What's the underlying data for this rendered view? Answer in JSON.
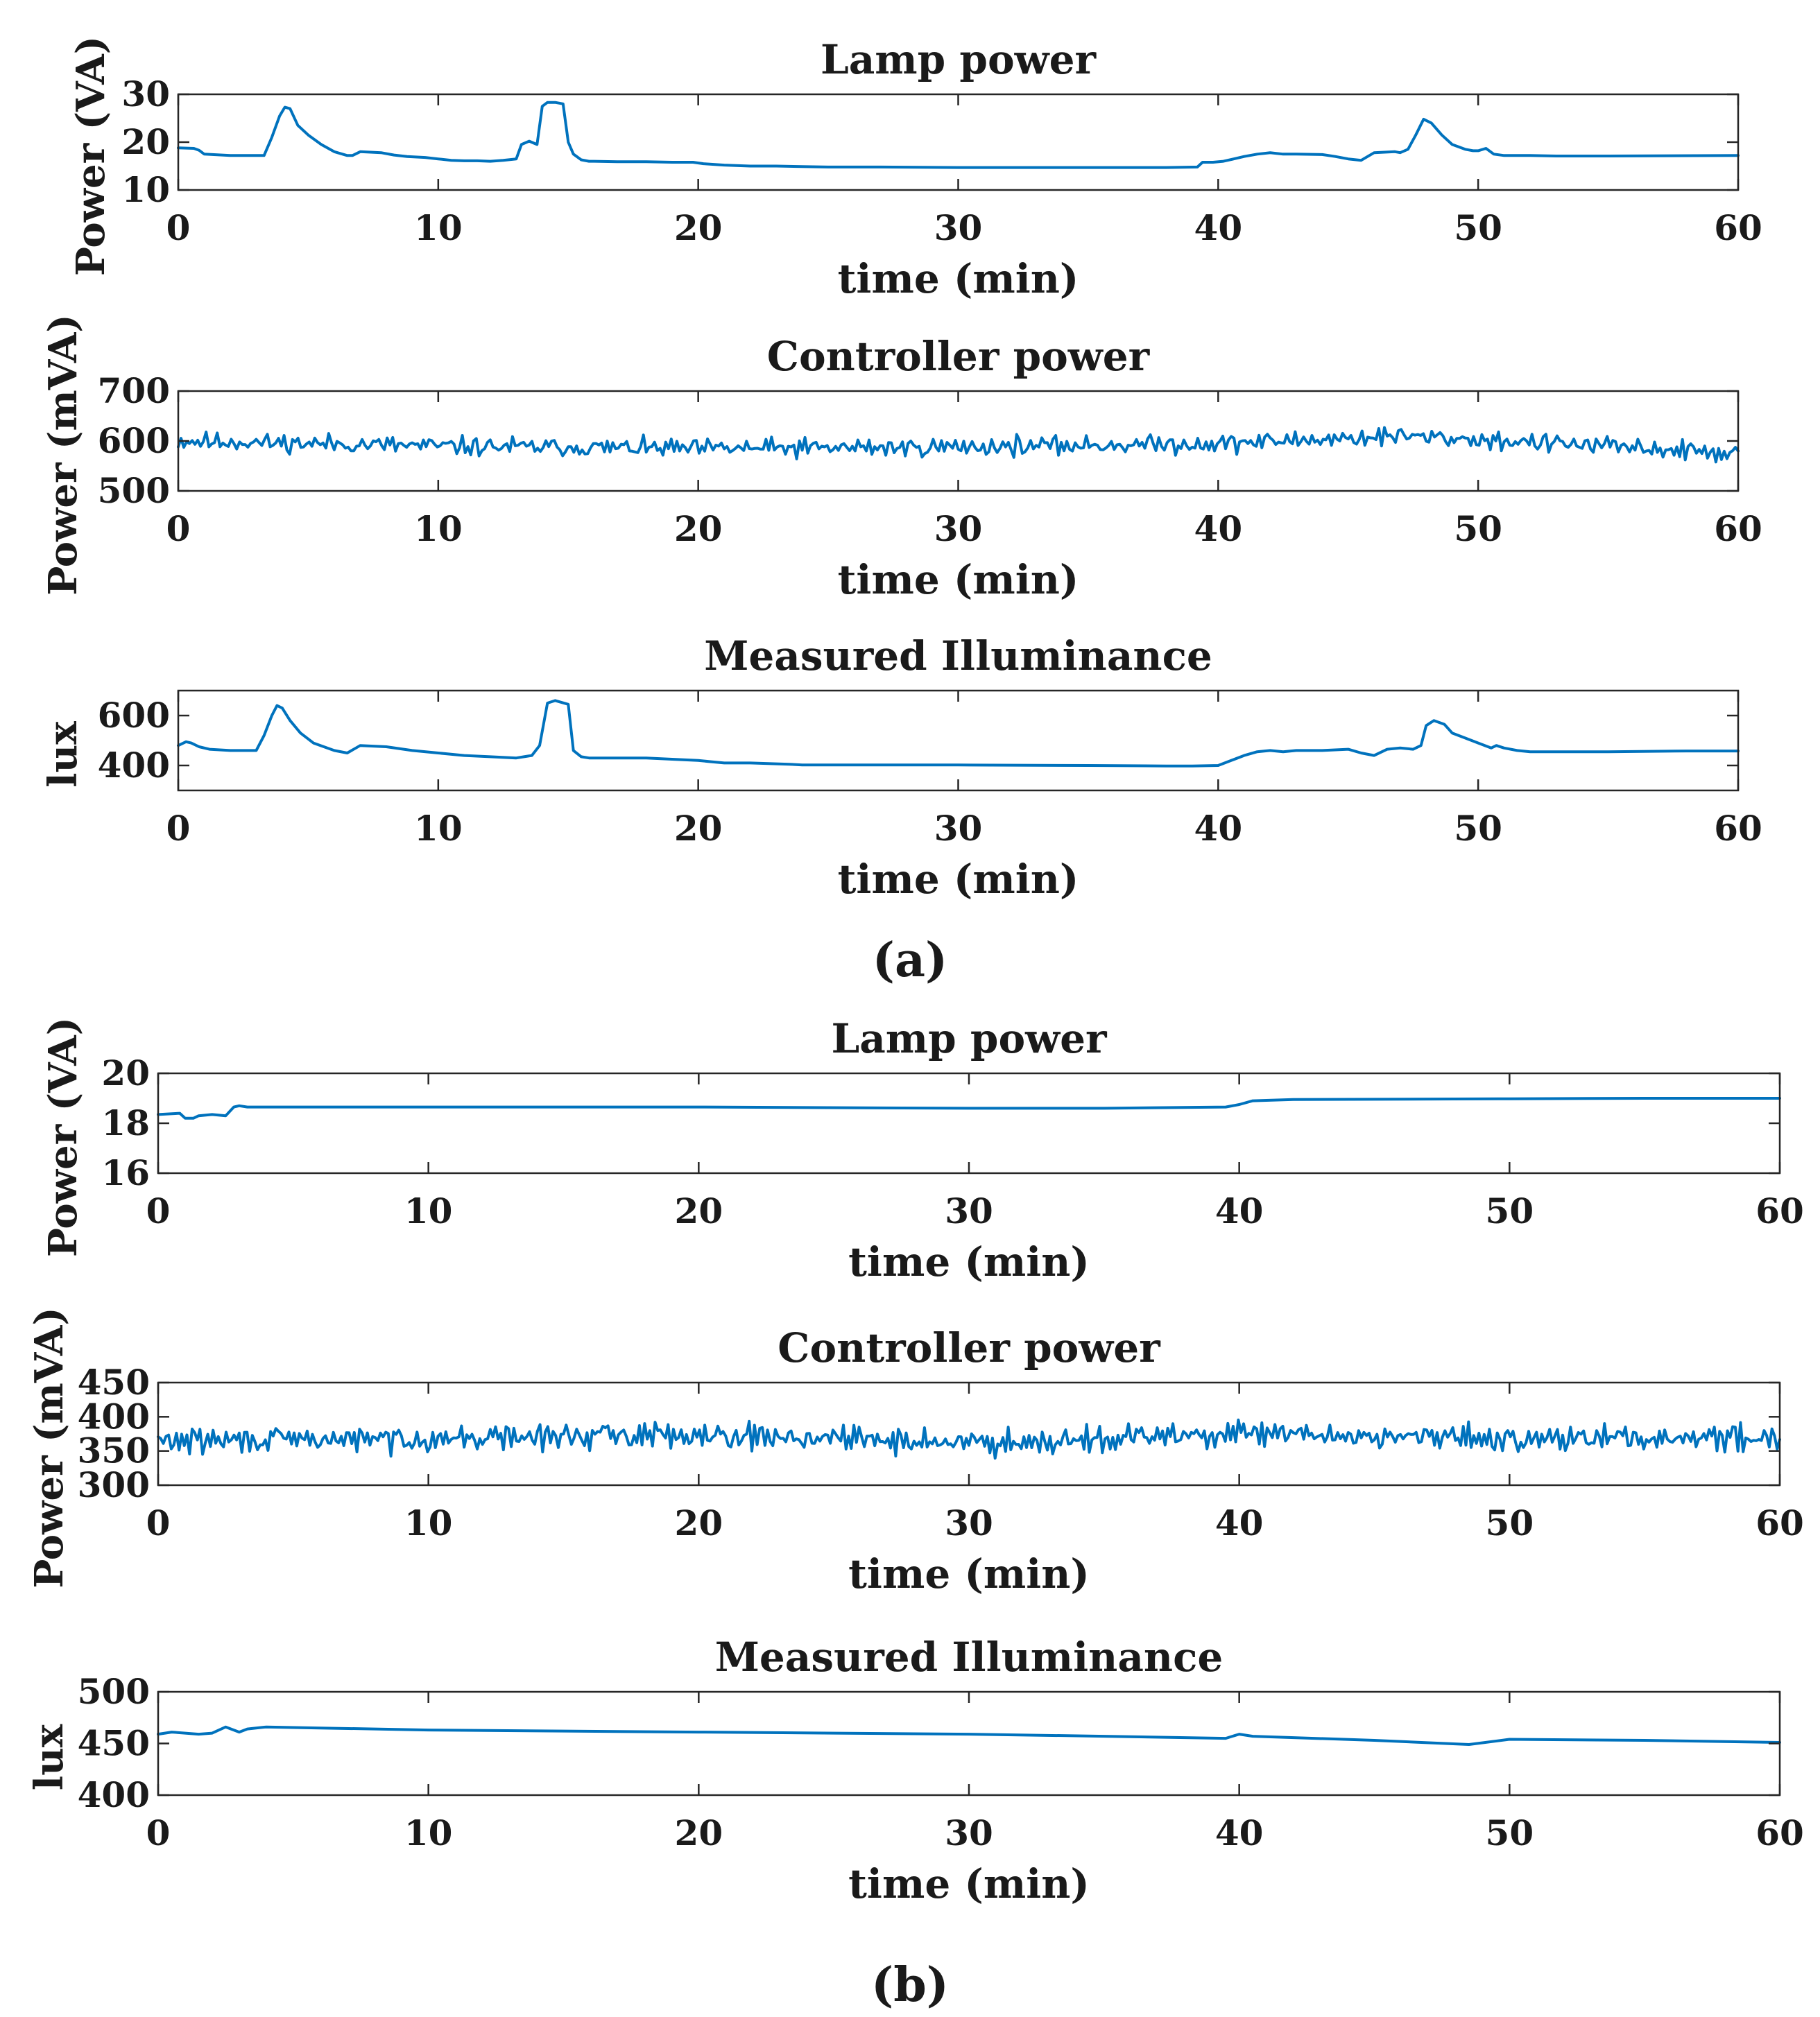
{
  "colors": {
    "series": "#0072BD",
    "axis": "#262626",
    "text": "#1a1a1a",
    "background": "#ffffff"
  },
  "panels": [
    {
      "label": "(a)"
    },
    {
      "label": "(b)"
    }
  ],
  "chart_data": [
    {
      "type": "line",
      "panel": "(a)",
      "title": "Lamp power",
      "xlabel": "time (min)",
      "ylabel": "Power (VA)",
      "xlim": [
        0,
        60
      ],
      "ylim": [
        10,
        30
      ],
      "xticks": [
        0,
        10,
        20,
        30,
        40,
        50,
        60
      ],
      "yticks": [
        10,
        20,
        30
      ],
      "grid": false,
      "series": [
        {
          "name": "Lamp power",
          "mode": "piecewise",
          "x": [
            0,
            0.6,
            0.8,
            1.0,
            2.0,
            3.3,
            3.6,
            3.9,
            4.1,
            4.3,
            4.6,
            5.0,
            5.5,
            6.0,
            6.5,
            6.7,
            7.0,
            7.8,
            8.3,
            8.8,
            9.5,
            10.0,
            10.5,
            11.0,
            11.5,
            12.0,
            12.5,
            13.0,
            13.2,
            13.5,
            13.8,
            14.0,
            14.2,
            14.5,
            14.8,
            15.0,
            15.2,
            15.5,
            15.8,
            16.0,
            17.0,
            18.0,
            19.0,
            19.8,
            20.2,
            21.0,
            22.0,
            23.0,
            24.0,
            25.0,
            27.0,
            30.0,
            33.0,
            36.0,
            38.0,
            39.2,
            39.4,
            39.8,
            40.2,
            40.6,
            41.0,
            41.5,
            42.0,
            42.5,
            43.0,
            44.0,
            44.5,
            45.0,
            45.5,
            46.0,
            46.8,
            47.0,
            47.3,
            47.6,
            47.9,
            48.2,
            48.6,
            49.0,
            49.5,
            49.8,
            50.0,
            50.3,
            50.6,
            51.0,
            52.0,
            53.0,
            55.0,
            60.0
          ],
          "y": [
            18.8,
            18.7,
            18.3,
            17.5,
            17.2,
            17.2,
            21.0,
            25.5,
            27.3,
            27.0,
            23.5,
            21.5,
            19.5,
            18.0,
            17.2,
            17.2,
            18.0,
            17.8,
            17.3,
            17.0,
            16.8,
            16.5,
            16.2,
            16.1,
            16.1,
            16.0,
            16.2,
            16.5,
            19.5,
            20.2,
            19.5,
            27.5,
            28.3,
            28.3,
            28.0,
            20.0,
            17.5,
            16.3,
            16.0,
            16.0,
            15.9,
            15.9,
            15.8,
            15.8,
            15.5,
            15.2,
            15.0,
            15.0,
            14.9,
            14.8,
            14.8,
            14.7,
            14.7,
            14.7,
            14.7,
            14.8,
            15.8,
            15.8,
            16.0,
            16.5,
            17.0,
            17.5,
            17.8,
            17.5,
            17.5,
            17.4,
            17.0,
            16.5,
            16.2,
            17.8,
            18.0,
            17.8,
            18.5,
            21.5,
            24.8,
            24.0,
            21.5,
            19.5,
            18.5,
            18.2,
            18.2,
            18.7,
            17.5,
            17.2,
            17.2,
            17.1,
            17.1,
            17.2
          ]
        }
      ]
    },
    {
      "type": "line",
      "panel": "(a)",
      "title": "Controller power",
      "xlabel": "time (min)",
      "ylabel": "Power (mVA)",
      "xlim": [
        0,
        60
      ],
      "ylim": [
        500,
        700
      ],
      "xticks": [
        0,
        10,
        20,
        30,
        40,
        50,
        60
      ],
      "yticks": [
        500,
        600,
        700
      ],
      "grid": false,
      "series": [
        {
          "name": "Controller power",
          "mode": "noise",
          "mean": 590,
          "amplitude": 32,
          "min": 530,
          "max": 650,
          "points": 560,
          "seed": 11,
          "trend": [
            [
              0,
              600
            ],
            [
              10,
              590
            ],
            [
              20,
              585
            ],
            [
              30,
              588
            ],
            [
              40,
              595
            ],
            [
              47,
              610
            ],
            [
              53,
              595
            ],
            [
              60,
              575
            ]
          ]
        }
      ]
    },
    {
      "type": "line",
      "panel": "(a)",
      "title": "Measured Illuminance",
      "xlabel": "time (min)",
      "ylabel": "lux",
      "xlim": [
        0,
        60
      ],
      "ylim": [
        300,
        700
      ],
      "xticks": [
        0,
        10,
        20,
        30,
        40,
        50,
        60
      ],
      "yticks": [
        400,
        600
      ],
      "grid": false,
      "series": [
        {
          "name": "Measured Illuminance",
          "mode": "piecewise",
          "x": [
            0,
            0.3,
            0.5,
            0.8,
            1.2,
            2.0,
            3.0,
            3.3,
            3.6,
            3.8,
            4.0,
            4.3,
            4.7,
            5.2,
            6.0,
            6.5,
            7.0,
            8.0,
            9.0,
            10.0,
            11.0,
            12.0,
            13.0,
            13.3,
            13.6,
            13.9,
            14.2,
            14.5,
            15.0,
            15.2,
            15.5,
            15.8,
            16.0,
            17.0,
            18.0,
            19.0,
            20.0,
            20.5,
            21.0,
            22.0,
            23.5,
            24.0,
            30.0,
            35.0,
            38.0,
            39.0,
            40.0,
            40.5,
            41.0,
            41.5,
            42.0,
            42.5,
            43.0,
            44.0,
            45.0,
            45.5,
            46.0,
            46.5,
            47.0,
            47.5,
            47.8,
            48.0,
            48.3,
            48.7,
            49.0,
            49.5,
            50.0,
            50.5,
            50.7,
            51.0,
            51.5,
            52.0,
            53.0,
            55.0,
            58.0,
            60.0
          ],
          "y": [
            480,
            495,
            490,
            475,
            465,
            460,
            460,
            520,
            600,
            640,
            630,
            580,
            530,
            490,
            460,
            450,
            480,
            475,
            460,
            450,
            440,
            435,
            430,
            435,
            440,
            480,
            650,
            660,
            645,
            460,
            435,
            430,
            430,
            430,
            430,
            425,
            420,
            415,
            410,
            410,
            405,
            402,
            402,
            400,
            398,
            398,
            400,
            420,
            440,
            455,
            460,
            455,
            460,
            460,
            465,
            450,
            440,
            465,
            470,
            465,
            480,
            560,
            580,
            565,
            530,
            510,
            490,
            470,
            480,
            470,
            460,
            455,
            455,
            455,
            458,
            458
          ]
        }
      ]
    },
    {
      "type": "line",
      "panel": "(b)",
      "title": "Lamp power",
      "xlabel": "time (min)",
      "ylabel": "Power (VA)",
      "xlim": [
        0,
        60
      ],
      "ylim": [
        16,
        20
      ],
      "xticks": [
        0,
        10,
        20,
        30,
        40,
        50,
        60
      ],
      "yticks": [
        16,
        18,
        20
      ],
      "grid": false,
      "series": [
        {
          "name": "Lamp power",
          "mode": "piecewise",
          "x": [
            0,
            0.8,
            1.0,
            1.3,
            1.5,
            2.0,
            2.5,
            2.8,
            3.0,
            3.3,
            4.0,
            10.0,
            20.0,
            30.0,
            35.0,
            39.5,
            40.0,
            40.5,
            42.0,
            50.0,
            55.0,
            60.0
          ],
          "y": [
            18.35,
            18.4,
            18.2,
            18.2,
            18.3,
            18.35,
            18.3,
            18.65,
            18.7,
            18.65,
            18.65,
            18.65,
            18.65,
            18.6,
            18.6,
            18.65,
            18.75,
            18.9,
            18.95,
            18.98,
            19.0,
            19.0
          ]
        }
      ]
    },
    {
      "type": "line",
      "panel": "(b)",
      "title": "Controller power",
      "xlabel": "time (min)",
      "ylabel": "Power (mVA)",
      "xlim": [
        0,
        60
      ],
      "ylim": [
        300,
        450
      ],
      "xticks": [
        0,
        10,
        20,
        30,
        40,
        50,
        60
      ],
      "yticks": [
        300,
        350,
        400,
        450
      ],
      "grid": false,
      "series": [
        {
          "name": "Controller power",
          "mode": "noise",
          "mean": 370,
          "amplitude": 30,
          "min": 310,
          "max": 432,
          "points": 620,
          "seed": 29,
          "trend": [
            [
              0,
              365
            ],
            [
              10,
              368
            ],
            [
              20,
              375
            ],
            [
              30,
              362
            ],
            [
              40,
              375
            ],
            [
              50,
              368
            ],
            [
              60,
              370
            ]
          ]
        }
      ]
    },
    {
      "type": "line",
      "panel": "(b)",
      "title": "Measured Illuminance",
      "xlabel": "time (min)",
      "ylabel": "lux",
      "xlim": [
        0,
        60
      ],
      "ylim": [
        400,
        500
      ],
      "xticks": [
        0,
        10,
        20,
        30,
        40,
        50,
        60
      ],
      "yticks": [
        400,
        450,
        500
      ],
      "grid": false,
      "series": [
        {
          "name": "Measured Illuminance",
          "mode": "piecewise",
          "x": [
            0,
            0.5,
            1.0,
            1.5,
            2.0,
            2.5,
            3.0,
            3.3,
            4.0,
            6.0,
            10.0,
            15.0,
            20.0,
            25.0,
            30.0,
            35.0,
            39.5,
            40.0,
            40.5,
            45.0,
            48.5,
            50.0,
            55.0,
            60.0
          ],
          "y": [
            459,
            461,
            460,
            459,
            460,
            466,
            461,
            464,
            466,
            465,
            463,
            462,
            461,
            460,
            459,
            457,
            455,
            459,
            457,
            453,
            449,
            454,
            453,
            451
          ]
        }
      ]
    }
  ]
}
